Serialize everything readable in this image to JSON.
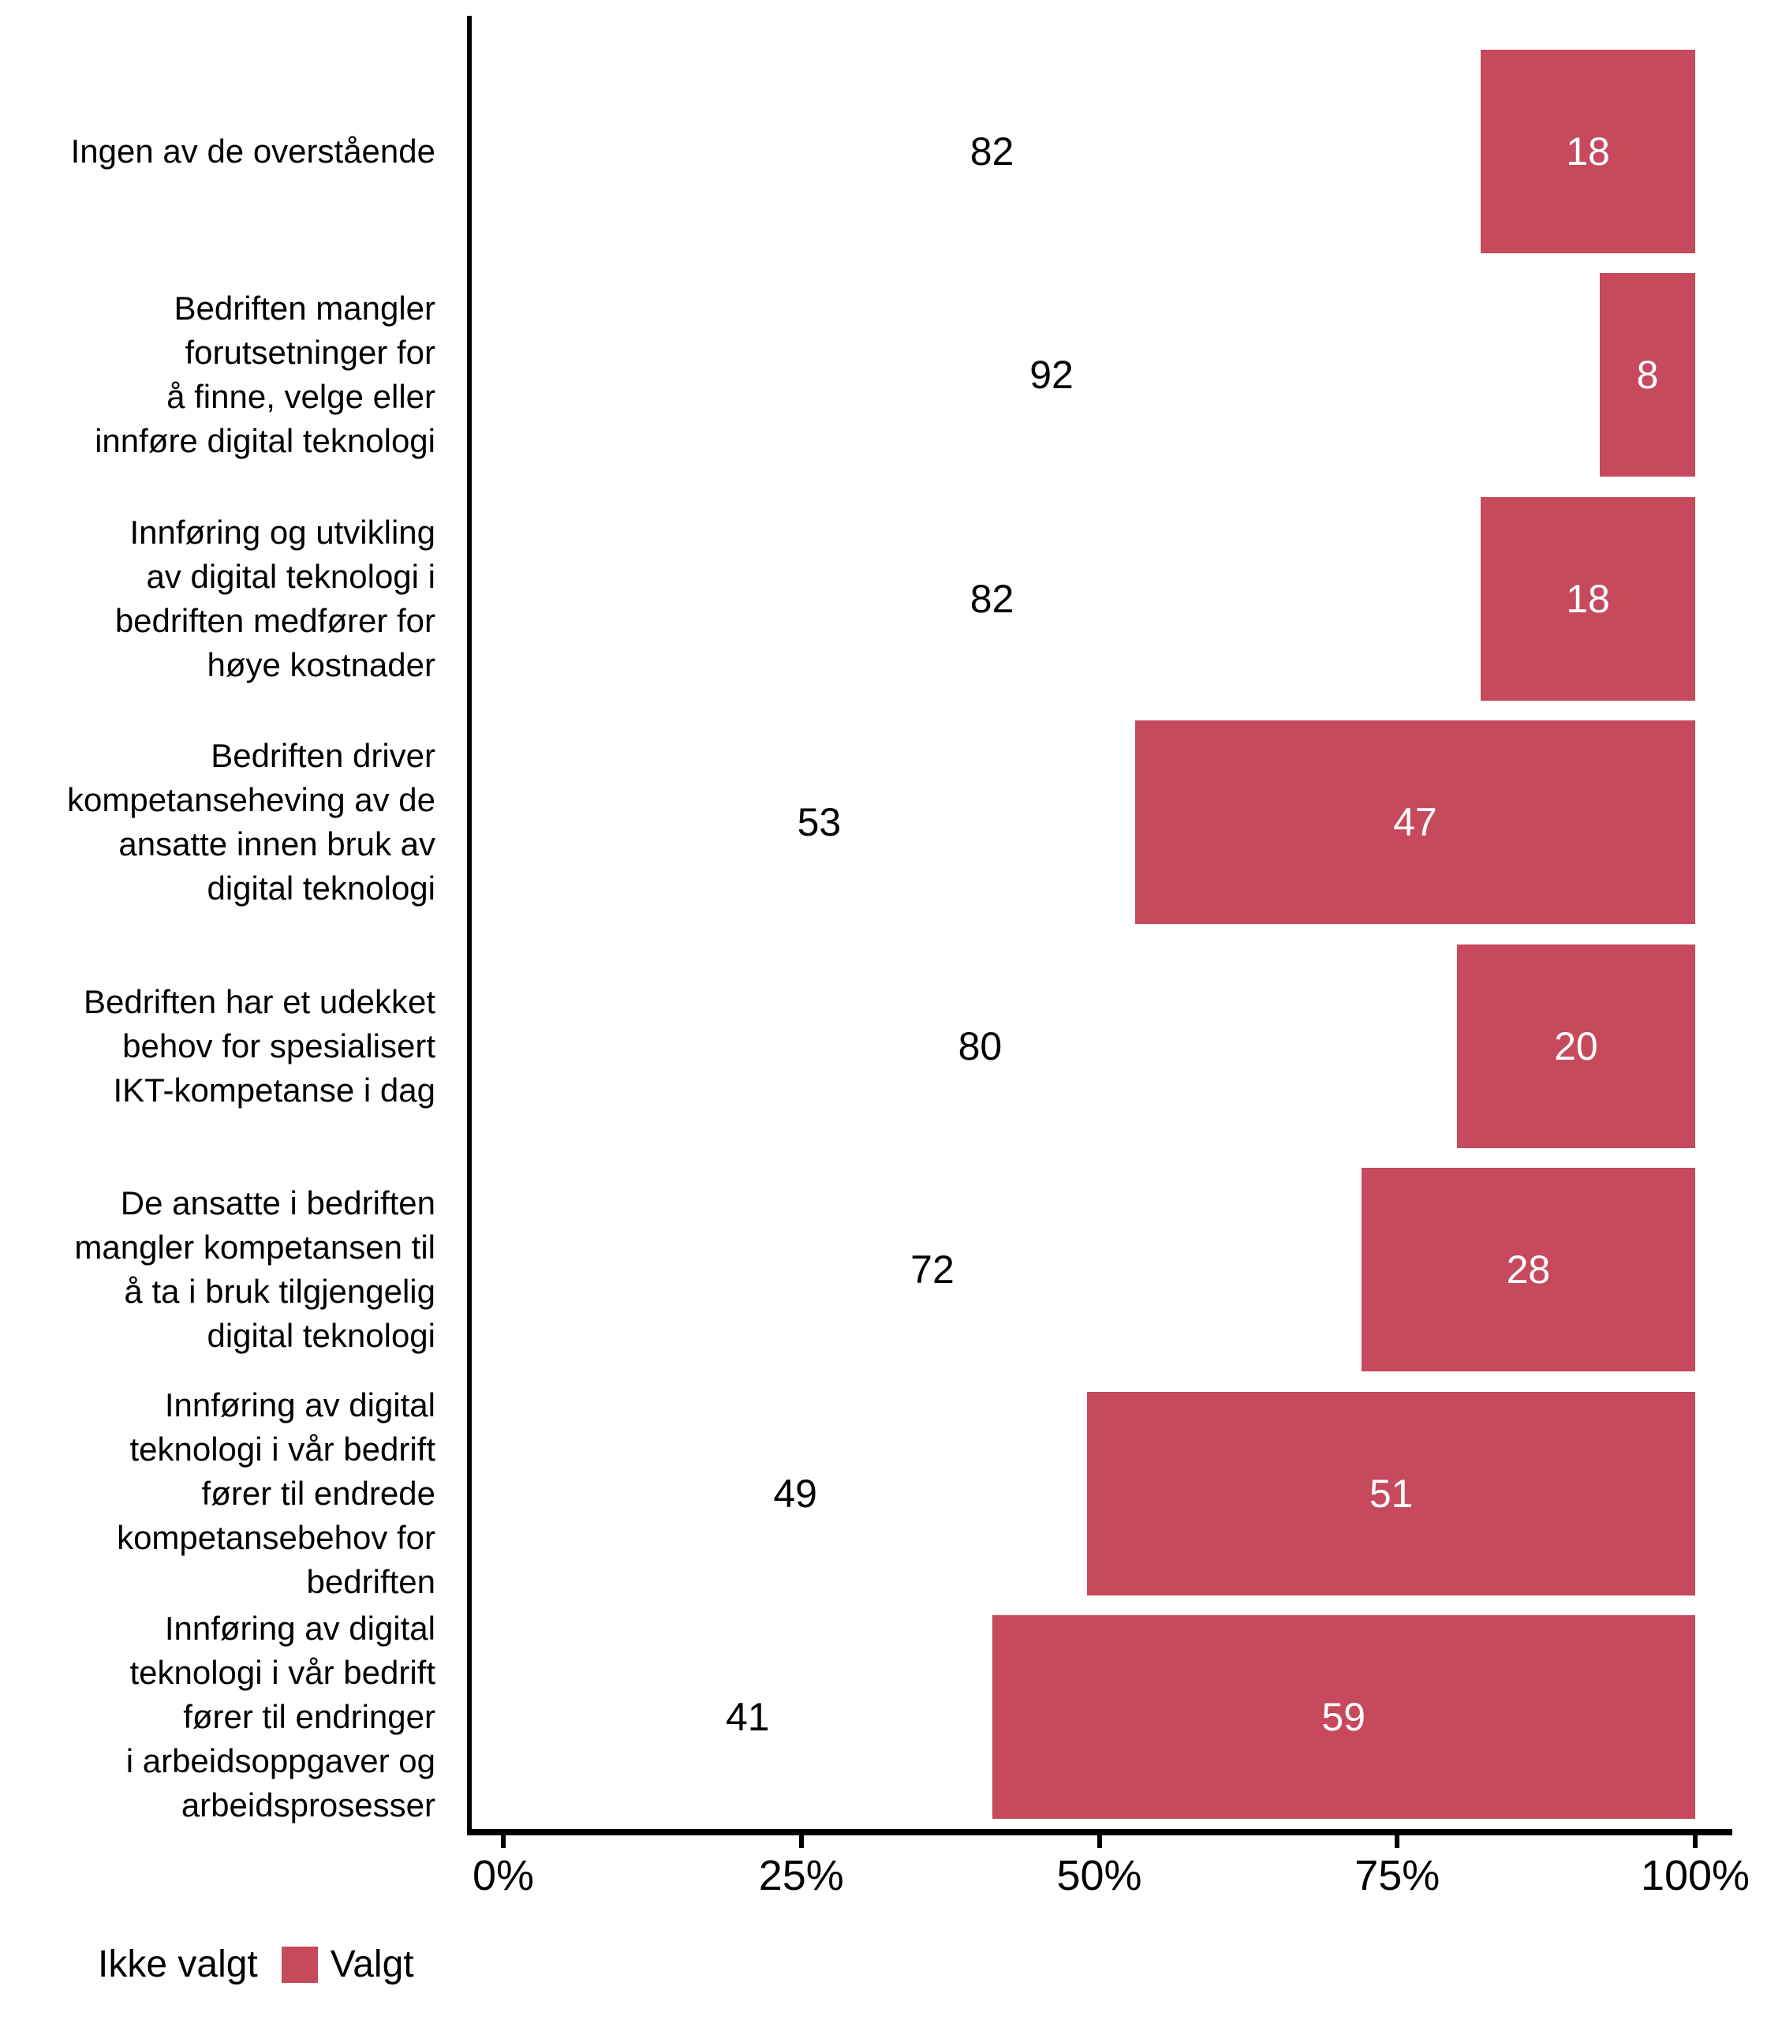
{
  "chart_data": {
    "type": "bar",
    "orientation": "horizontal",
    "stacked": true,
    "unit": "percent",
    "categories": [
      "Ingen av de overstående",
      "Bedriften mangler\nforutsetninger for\nå finne, velge eller\ninnføre digital teknologi",
      "Innføring og utvikling\nav digital teknologi i\nbedriften medfører for\nhøye kostnader",
      "Bedriften driver\nkompetanseheving av de\nansatte innen bruk av\ndigital teknologi",
      "Bedriften har et udekket\nbehov for spesialisert\nIKT-kompetanse i dag",
      "De ansatte i bedriften\nmangler kompetansen til\nå ta i bruk tilgjengelig\ndigital teknologi",
      "Innføring av digital\nteknologi i vår bedrift\nfører til endrede\nkompetansebehov for\nbedriften",
      "Innføring av digital\nteknologi i vår bedrift\nfører til endringer\ni arbeidsoppgaver og\narbeidsprosesser"
    ],
    "series": [
      {
        "name": "Ikke valgt",
        "color": "#FFFFFF",
        "label_color": "#000000",
        "values": [
          82,
          92,
          82,
          53,
          80,
          72,
          49,
          41
        ]
      },
      {
        "name": "Valgt",
        "color": "#C6495C",
        "label_color": "#FFFFFF",
        "values": [
          18,
          8,
          18,
          47,
          20,
          28,
          51,
          59
        ]
      }
    ],
    "x_axis": {
      "tick_labels": [
        "0%",
        "25%",
        "50%",
        "75%",
        "100%"
      ],
      "range": [
        0,
        100
      ],
      "grid": false
    },
    "y_axis": {
      "side": "left"
    },
    "legend": {
      "position": "bottom-left"
    },
    "axis_color": "#000000",
    "background_color": "#FFFFFF"
  }
}
